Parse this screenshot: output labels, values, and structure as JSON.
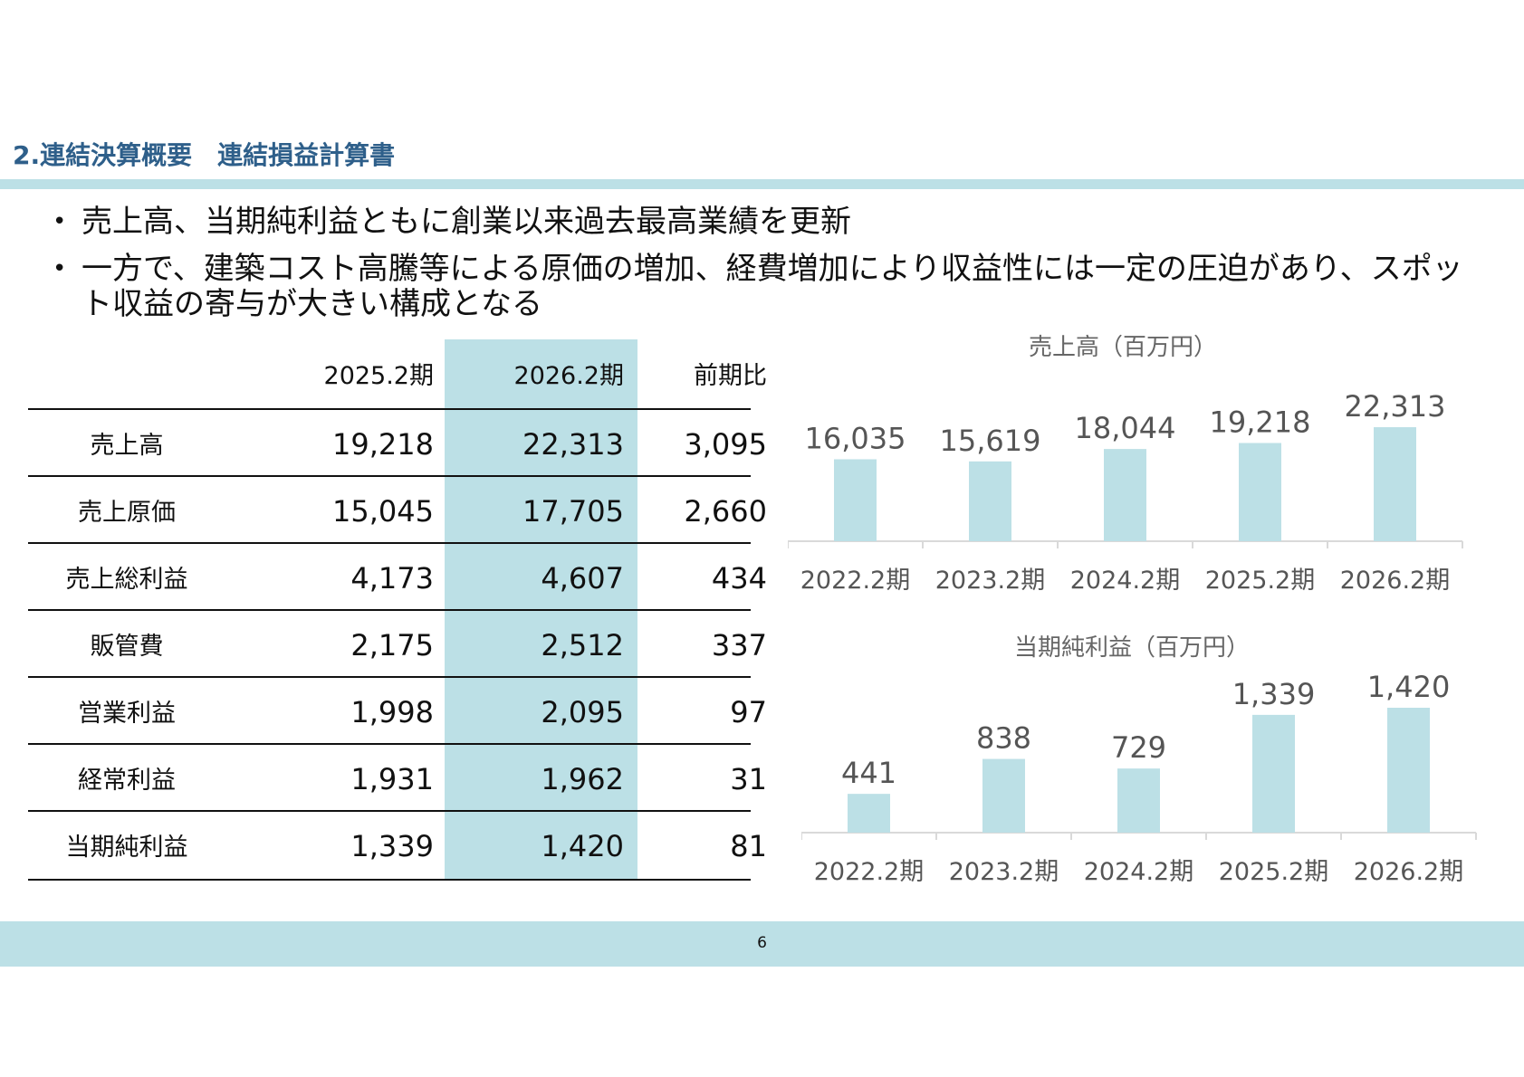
{
  "header": {
    "title": "2.連結決算概要　連結損益計算書"
  },
  "bullets": [
    "売上高、当期純利益ともに創業以来過去最高業績を更新",
    "一方で、建築コスト高騰等による原価の増加、経費増加により収益性には一定の圧迫があり、スポット収益の寄与が大きい構成となる"
  ],
  "table": {
    "columns": [
      "",
      "2025.2期",
      "2026.2期",
      "前期比"
    ],
    "rows": [
      {
        "label": "売上高",
        "prev": "19,218",
        "curr": "22,313",
        "diff": "3,095"
      },
      {
        "label": "売上原価",
        "prev": "15,045",
        "curr": "17,705",
        "diff": "2,660"
      },
      {
        "label": "売上総利益",
        "prev": "4,173",
        "curr": "4,607",
        "diff": "434"
      },
      {
        "label": "販管費",
        "prev": "2,175",
        "curr": "2,512",
        "diff": "337"
      },
      {
        "label": "営業利益",
        "prev": "1,998",
        "curr": "2,095",
        "diff": "97"
      },
      {
        "label": "経常利益",
        "prev": "1,931",
        "curr": "1,962",
        "diff": "31"
      },
      {
        "label": "当期純利益",
        "prev": "1,339",
        "curr": "1,420",
        "diff": "81"
      }
    ],
    "highlight_color": "#bce0e6"
  },
  "chart_data": [
    {
      "type": "bar",
      "title": "売上高（百万円）",
      "categories": [
        "2022.2期",
        "2023.2期",
        "2024.2期",
        "2025.2期",
        "2026.2期"
      ],
      "values": [
        16035,
        15619,
        18044,
        19218,
        22313
      ],
      "labels": [
        "16,035",
        "15,619",
        "18,044",
        "19,218",
        "22,313"
      ],
      "ylim": [
        0,
        22313
      ],
      "bar_color": "#bce0e6",
      "grid": false
    },
    {
      "type": "bar",
      "title": "当期純利益（百万円）",
      "categories": [
        "2022.2期",
        "2023.2期",
        "2024.2期",
        "2025.2期",
        "2026.2期"
      ],
      "values": [
        441,
        838,
        729,
        1339,
        1420
      ],
      "labels": [
        "441",
        "838",
        "729",
        "1,339",
        "1,420"
      ],
      "ylim": [
        0,
        1420
      ],
      "bar_color": "#bce0e6",
      "grid": false
    }
  ],
  "footer": {
    "page_number": "6"
  }
}
